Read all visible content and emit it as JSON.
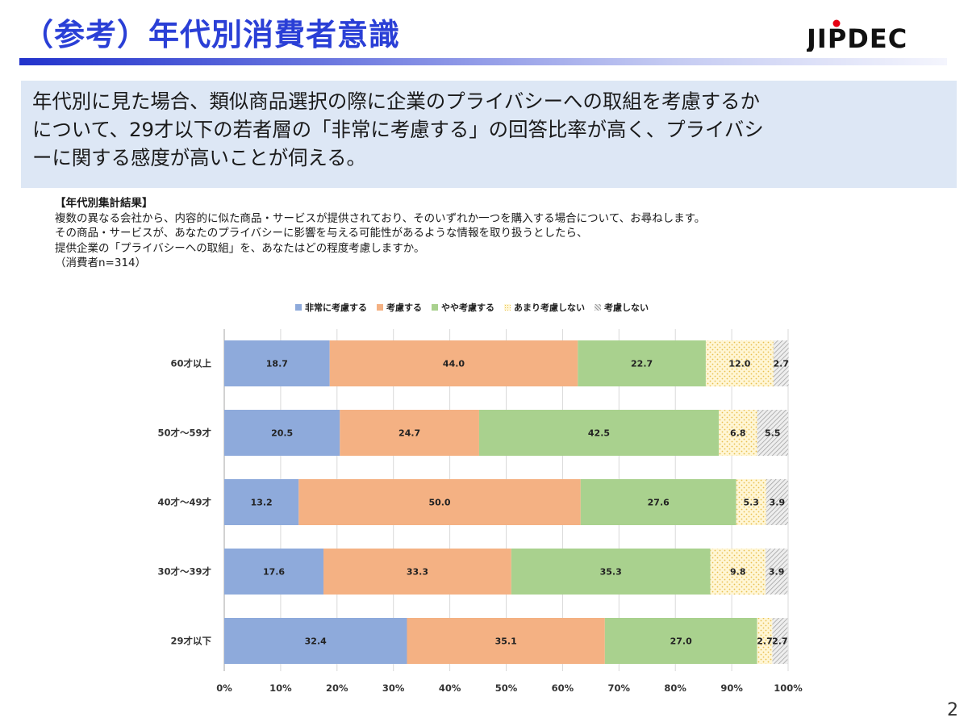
{
  "slide": {
    "title": "（参考）年代別消費者意識",
    "logo_text": "JIPDEC",
    "page_number": "2",
    "accent_color": "#2a3fd6",
    "summary_lines": [
      "年代別に見た場合、類似商品選択の際に企業のプライバシーへの取組を考慮するか",
      "について、29才以下の若者層の「非常に考慮する」の回答比率が高く、プライバシ",
      "ーに関する感度が高いことが伺える。"
    ],
    "survey": {
      "heading": "【年代別集計結果】",
      "lines": [
        "複数の異なる会社から、内容的に似た商品・サービスが提供されており、そのいずれか一つを購入する場合について、お尋ねします。",
        "その商品・サービスが、あなたのプライバシーに影響を与える可能性があるような情報を取り扱うとしたら、",
        "提供企業の「プライバシーへの取組」を、あなたはどの程度考慮しますか。",
        "（消費者n=314）"
      ]
    }
  },
  "chart_data": {
    "type": "bar",
    "orientation": "horizontal",
    "stacked": "percent",
    "categories": [
      "60才以上",
      "50才～59才",
      "40才～49才",
      "30才～39才",
      "29才以下"
    ],
    "series": [
      {
        "name": "非常に考慮する",
        "color": "#8eaadb",
        "values": [
          18.7,
          20.5,
          13.2,
          17.6,
          32.4
        ]
      },
      {
        "name": "考慮する",
        "color": "#f4b183",
        "values": [
          44.0,
          24.7,
          50.0,
          33.3,
          35.1
        ]
      },
      {
        "name": "やや考慮する",
        "color": "#a9d18e",
        "values": [
          22.7,
          42.5,
          27.6,
          35.3,
          27.0
        ]
      },
      {
        "name": "あまり考慮しない",
        "color": "#ffe699",
        "pattern": "dotted",
        "values": [
          12.0,
          6.8,
          5.3,
          9.8,
          2.7
        ]
      },
      {
        "name": "考慮しない",
        "color": "#bfbfbf",
        "pattern": "hatched",
        "values": [
          2.7,
          5.5,
          3.9,
          3.9,
          2.7
        ]
      }
    ],
    "x_ticks": [
      "0%",
      "10%",
      "20%",
      "30%",
      "40%",
      "50%",
      "60%",
      "70%",
      "80%",
      "90%",
      "100%"
    ],
    "xlim": [
      0,
      100
    ],
    "grid": true,
    "legend_position": "top",
    "data_labels": true
  }
}
